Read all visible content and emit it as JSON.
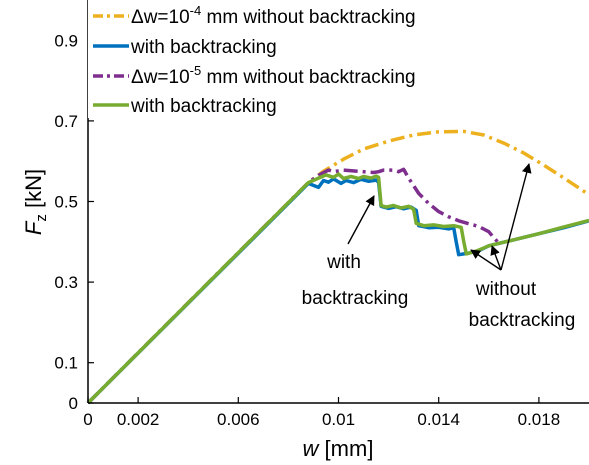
{
  "chart_data": {
    "type": "line",
    "xlabel": {
      "var": "w",
      "unit": " [mm]"
    },
    "ylabel": {
      "var": "F",
      "sub": "z",
      "unit": " [kN]"
    },
    "xlim": [
      0,
      0.02
    ],
    "ylim": [
      0,
      1.0
    ],
    "xticks": [
      0,
      0.002,
      0.006,
      0.01,
      0.014,
      0.018
    ],
    "xtick_labels": [
      "0",
      "0.002",
      "0.006",
      "0.01",
      "0.014",
      "0.018"
    ],
    "yticks": [
      0,
      0.1,
      0.3,
      0.5,
      0.7,
      0.9
    ],
    "ytick_labels": [
      "0",
      "0.1",
      "0.3",
      "0.5",
      "0.7",
      "0.9"
    ],
    "grid": false,
    "legend_position": "top-left",
    "legend": [
      {
        "pre": "Δw=10",
        "sup": "-4",
        "post": " mm without backtracking",
        "color": "#EDB120",
        "dash": "dashdot"
      },
      {
        "pre": "with backtracking",
        "sup": "",
        "post": "",
        "color": "#0072BD",
        "dash": "solid"
      },
      {
        "pre": "Δw=10",
        "sup": "-5",
        "post": " mm without backtracking",
        "color": "#7E2F8E",
        "dash": "dashdot"
      },
      {
        "pre": "with backtracking",
        "sup": "",
        "post": "",
        "color": "#77AC30",
        "dash": "solid"
      }
    ],
    "annotations": [
      {
        "lines": [
          "with",
          "backtracking"
        ]
      },
      {
        "lines": [
          "without",
          "backtracking"
        ]
      }
    ],
    "series": [
      {
        "color": "#EDB120",
        "dash": "dashdot",
        "width": 3.5,
        "points": [
          [
            0,
            0
          ],
          [
            0.0088,
            0.547
          ],
          [
            0.0094,
            0.575
          ],
          [
            0.0102,
            0.605
          ],
          [
            0.011,
            0.63
          ],
          [
            0.012,
            0.65
          ],
          [
            0.013,
            0.665
          ],
          [
            0.014,
            0.673
          ],
          [
            0.015,
            0.674
          ],
          [
            0.0158,
            0.665
          ],
          [
            0.0166,
            0.645
          ],
          [
            0.0174,
            0.62
          ],
          [
            0.0182,
            0.59
          ],
          [
            0.019,
            0.558
          ],
          [
            0.0198,
            0.525
          ],
          [
            0.02,
            0.516
          ]
        ]
      },
      {
        "color": "#7E2F8E",
        "dash": "dashdot",
        "width": 3.5,
        "points": [
          [
            0,
            0
          ],
          [
            0.0088,
            0.547
          ],
          [
            0.0092,
            0.565
          ],
          [
            0.0096,
            0.578
          ],
          [
            0.0098,
            0.574
          ],
          [
            0.0102,
            0.578
          ],
          [
            0.0108,
            0.575
          ],
          [
            0.0114,
            0.572
          ],
          [
            0.0116,
            0.574
          ],
          [
            0.0118,
            0.578
          ],
          [
            0.0122,
            0.578
          ],
          [
            0.0124,
            0.574
          ],
          [
            0.0126,
            0.58
          ],
          [
            0.0128,
            0.558
          ],
          [
            0.0132,
            0.52
          ],
          [
            0.0136,
            0.495
          ],
          [
            0.014,
            0.475
          ],
          [
            0.0144,
            0.462
          ],
          [
            0.0148,
            0.452
          ],
          [
            0.0152,
            0.445
          ],
          [
            0.0156,
            0.438
          ],
          [
            0.016,
            0.425
          ],
          [
            0.0162,
            0.41
          ],
          [
            0.0164,
            0.397
          ]
        ]
      },
      {
        "color": "#0072BD",
        "dash": "solid",
        "width": 3.5,
        "points": [
          [
            0,
            0
          ],
          [
            0.0088,
            0.545
          ],
          [
            0.009,
            0.54
          ],
          [
            0.0092,
            0.535
          ],
          [
            0.0094,
            0.552
          ],
          [
            0.0096,
            0.548
          ],
          [
            0.0098,
            0.556
          ],
          [
            0.0101,
            0.545
          ],
          [
            0.0103,
            0.552
          ],
          [
            0.0106,
            0.547
          ],
          [
            0.0109,
            0.555
          ],
          [
            0.0112,
            0.55
          ],
          [
            0.0115,
            0.553
          ],
          [
            0.0116,
            0.548
          ],
          [
            0.0117,
            0.488
          ],
          [
            0.012,
            0.483
          ],
          [
            0.0123,
            0.487
          ],
          [
            0.0126,
            0.482
          ],
          [
            0.0129,
            0.486
          ],
          [
            0.0131,
            0.478
          ],
          [
            0.0132,
            0.44
          ],
          [
            0.0136,
            0.435
          ],
          [
            0.014,
            0.436
          ],
          [
            0.0144,
            0.432
          ],
          [
            0.0146,
            0.435
          ],
          [
            0.0147,
            0.4
          ],
          [
            0.0148,
            0.368
          ],
          [
            0.0152,
            0.372
          ],
          [
            0.0156,
            0.378
          ],
          [
            0.016,
            0.39
          ],
          [
            0.017,
            0.405
          ],
          [
            0.018,
            0.42
          ],
          [
            0.019,
            0.435
          ],
          [
            0.02,
            0.452
          ]
        ]
      },
      {
        "color": "#77AC30",
        "dash": "solid",
        "width": 3.5,
        "points": [
          [
            0,
            0
          ],
          [
            0.0088,
            0.547
          ],
          [
            0.0092,
            0.558
          ],
          [
            0.0095,
            0.566
          ],
          [
            0.0098,
            0.56
          ],
          [
            0.01,
            0.568
          ],
          [
            0.0102,
            0.557
          ],
          [
            0.0105,
            0.562
          ],
          [
            0.0108,
            0.557
          ],
          [
            0.011,
            0.562
          ],
          [
            0.0113,
            0.558
          ],
          [
            0.0115,
            0.563
          ],
          [
            0.0116,
            0.56
          ],
          [
            0.0117,
            0.49
          ],
          [
            0.0119,
            0.486
          ],
          [
            0.0122,
            0.49
          ],
          [
            0.0125,
            0.484
          ],
          [
            0.0128,
            0.488
          ],
          [
            0.013,
            0.481
          ],
          [
            0.0131,
            0.446
          ],
          [
            0.0134,
            0.44
          ],
          [
            0.0138,
            0.442
          ],
          [
            0.0142,
            0.438
          ],
          [
            0.0146,
            0.44
          ],
          [
            0.0149,
            0.436
          ],
          [
            0.015,
            0.4
          ],
          [
            0.0151,
            0.37
          ],
          [
            0.0155,
            0.377
          ],
          [
            0.016,
            0.39
          ],
          [
            0.017,
            0.405
          ],
          [
            0.018,
            0.42
          ],
          [
            0.019,
            0.437
          ],
          [
            0.02,
            0.453
          ]
        ]
      }
    ]
  }
}
